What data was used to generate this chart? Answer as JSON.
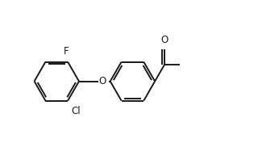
{
  "bg_color": "#ffffff",
  "line_color": "#1a1a1a",
  "line_width": 1.4,
  "font_size": 8.5,
  "label_F": "F",
  "label_Cl": "Cl",
  "label_O_ether": "O",
  "label_O_carbonyl": "O",
  "xlim": [
    0,
    10
  ],
  "ylim": [
    0,
    6.2
  ],
  "figw": 3.2,
  "figh": 1.98,
  "dpi": 100
}
